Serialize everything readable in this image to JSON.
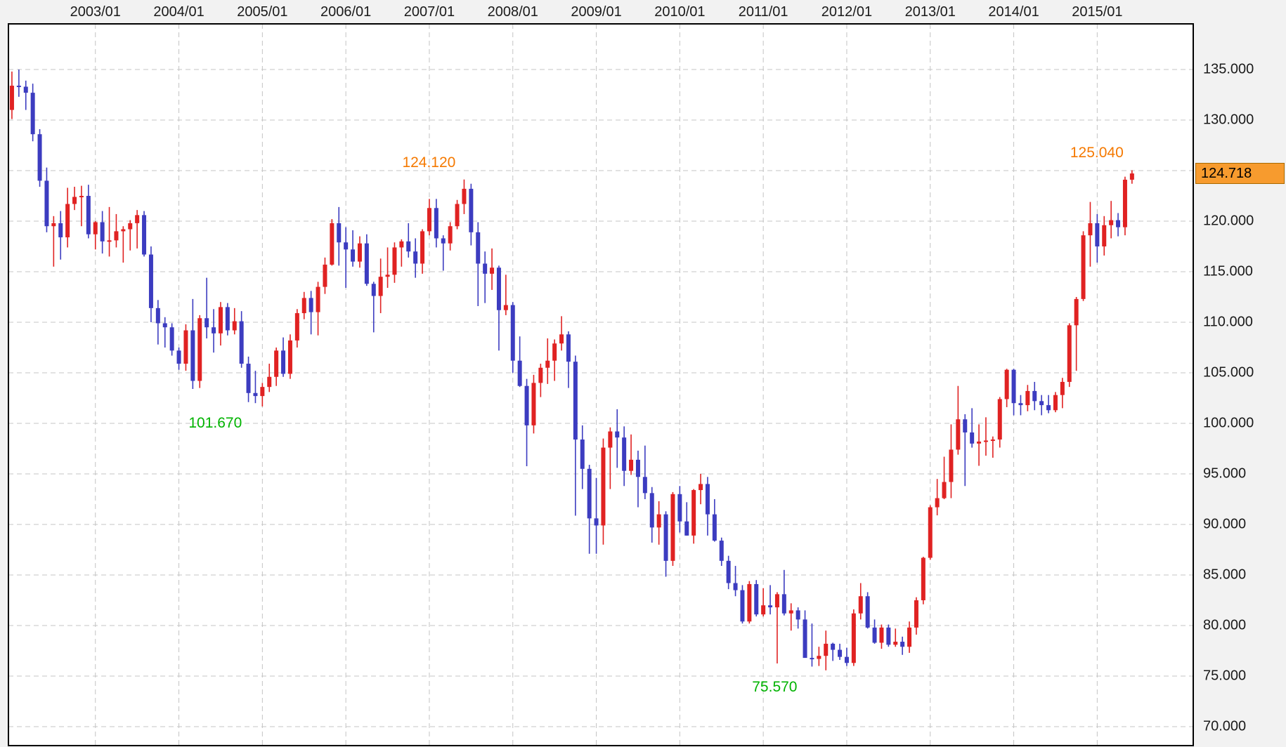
{
  "chart_data": {
    "type": "candlestick",
    "title": "",
    "x_axis": {
      "labels": [
        "2003/01",
        "2004/01",
        "2005/01",
        "2006/01",
        "2007/01",
        "2008/01",
        "2009/01",
        "2010/01",
        "2011/01",
        "2012/01",
        "2013/01",
        "2014/01",
        "2015/01"
      ],
      "start_month": "2002/01",
      "total_months": 162,
      "first_label_index": 12,
      "label_every": 12
    },
    "y_axis": {
      "labels": [
        "135.000",
        "130.000",
        "125.000",
        "120.000",
        "115.000",
        "110.000",
        "105.000",
        "100.000",
        "95.000",
        "90.000",
        "85.000",
        "80.000",
        "75.000",
        "70.000"
      ],
      "max": 135,
      "min": 70,
      "step": 5,
      "grid": true
    },
    "last_price": 124.718,
    "last_price_label": "124.718",
    "annotations": [
      {
        "name": "annotation-high-2007",
        "label": "124.120",
        "month_index": 65,
        "price": 124.12,
        "kind": "high"
      },
      {
        "name": "annotation-high-2015",
        "label": "125.040",
        "month_index": 161,
        "price": 125.04,
        "kind": "high"
      },
      {
        "name": "annotation-low-2005",
        "label": "101.670",
        "month_index": 36,
        "price": 101.67,
        "kind": "low"
      },
      {
        "name": "annotation-low-2011",
        "label": "75.570",
        "month_index": 117,
        "price": 75.57,
        "kind": "low"
      }
    ],
    "colors": {
      "up_candle": "#e02222",
      "down_candle": "#3c3cc0",
      "grid": "#c4c4c4",
      "plot_bg": "#ffffff",
      "outer_bg": "#f2f2f2",
      "border": "#000000",
      "axis_text": "#1a1a1a",
      "annotation_high": "#f57900",
      "annotation_low": "#00b300",
      "price_tag_bg": "#f79b2e",
      "price_tag_border": "#a96a00",
      "price_tag_text": "#000000"
    },
    "ohlc": [
      [
        131.0,
        134.8,
        130.1,
        133.4
      ],
      [
        133.4,
        135.0,
        132.3,
        133.3
      ],
      [
        133.3,
        133.9,
        131.0,
        132.7
      ],
      [
        132.7,
        133.6,
        127.9,
        128.6
      ],
      [
        128.6,
        129.1,
        123.4,
        124.0
      ],
      [
        124.0,
        125.3,
        118.9,
        119.5
      ],
      [
        119.5,
        120.5,
        115.5,
        119.8
      ],
      [
        119.8,
        121.0,
        116.2,
        118.4
      ],
      [
        118.4,
        123.3,
        117.4,
        121.7
      ],
      [
        121.7,
        123.4,
        121.1,
        122.4
      ],
      [
        122.4,
        123.5,
        119.5,
        122.5
      ],
      [
        122.5,
        123.6,
        118.3,
        118.7
      ],
      [
        118.7,
        120.0,
        117.2,
        119.9
      ],
      [
        119.9,
        121.0,
        116.8,
        118.0
      ],
      [
        118.0,
        121.4,
        116.5,
        118.1
      ],
      [
        118.1,
        120.7,
        117.4,
        119.0
      ],
      [
        119.0,
        119.5,
        115.9,
        119.2
      ],
      [
        119.2,
        120.1,
        117.1,
        119.8
      ],
      [
        119.8,
        121.1,
        117.3,
        120.6
      ],
      [
        120.6,
        121.0,
        116.5,
        116.7
      ],
      [
        116.7,
        117.5,
        110.0,
        111.4
      ],
      [
        111.4,
        112.2,
        107.8,
        109.9
      ],
      [
        109.9,
        110.5,
        107.5,
        109.5
      ],
      [
        109.5,
        109.9,
        106.7,
        107.2
      ],
      [
        107.2,
        107.5,
        105.3,
        105.9
      ],
      [
        105.9,
        109.8,
        105.2,
        109.2
      ],
      [
        109.2,
        112.3,
        103.4,
        104.2
      ],
      [
        104.2,
        110.7,
        103.5,
        110.4
      ],
      [
        110.4,
        114.4,
        108.4,
        109.5
      ],
      [
        109.5,
        111.3,
        107.0,
        108.9
      ],
      [
        108.9,
        112.0,
        107.7,
        111.5
      ],
      [
        111.5,
        111.9,
        108.7,
        109.2
      ],
      [
        109.2,
        111.4,
        108.8,
        110.1
      ],
      [
        110.1,
        111.1,
        105.5,
        105.9
      ],
      [
        105.9,
        106.6,
        102.1,
        103.0
      ],
      [
        103.0,
        105.2,
        102.0,
        102.7
      ],
      [
        102.7,
        104.0,
        101.67,
        103.6
      ],
      [
        103.6,
        105.9,
        103.1,
        104.6
      ],
      [
        104.6,
        107.5,
        103.7,
        107.2
      ],
      [
        107.2,
        108.5,
        104.6,
        104.9
      ],
      [
        104.9,
        108.8,
        104.4,
        108.2
      ],
      [
        108.2,
        111.3,
        107.5,
        110.9
      ],
      [
        110.9,
        113.0,
        110.3,
        112.4
      ],
      [
        112.4,
        113.1,
        108.8,
        111.0
      ],
      [
        111.0,
        114.0,
        108.7,
        113.5
      ],
      [
        113.5,
        116.4,
        112.8,
        115.7
      ],
      [
        115.7,
        120.2,
        115.6,
        119.8
      ],
      [
        119.8,
        121.4,
        115.6,
        117.9
      ],
      [
        117.9,
        119.4,
        113.4,
        117.2
      ],
      [
        117.2,
        119.1,
        115.5,
        116.0
      ],
      [
        116.0,
        118.5,
        115.4,
        117.8
      ],
      [
        117.8,
        118.7,
        113.6,
        113.8
      ],
      [
        113.8,
        114.0,
        109.0,
        112.6
      ],
      [
        112.6,
        116.3,
        110.9,
        114.5
      ],
      [
        114.5,
        117.4,
        113.4,
        114.7
      ],
      [
        114.7,
        117.9,
        113.9,
        117.4
      ],
      [
        117.4,
        118.2,
        115.5,
        118.0
      ],
      [
        118.0,
        119.8,
        116.4,
        117.0
      ],
      [
        117.0,
        118.3,
        114.4,
        115.8
      ],
      [
        115.8,
        119.2,
        114.8,
        119.0
      ],
      [
        119.0,
        122.2,
        118.6,
        121.3
      ],
      [
        121.3,
        122.2,
        117.4,
        118.3
      ],
      [
        118.3,
        118.6,
        115.1,
        117.8
      ],
      [
        117.8,
        119.9,
        117.1,
        119.5
      ],
      [
        119.5,
        122.1,
        119.2,
        121.7
      ],
      [
        121.7,
        124.12,
        120.7,
        123.2
      ],
      [
        123.2,
        123.7,
        117.6,
        118.9
      ],
      [
        118.9,
        119.9,
        111.6,
        115.8
      ],
      [
        115.8,
        117.0,
        111.9,
        114.8
      ],
      [
        114.8,
        117.3,
        113.2,
        115.4
      ],
      [
        115.4,
        115.6,
        107.2,
        111.2
      ],
      [
        111.2,
        114.7,
        110.7,
        111.7
      ],
      [
        111.7,
        112.0,
        105.0,
        106.2
      ],
      [
        106.2,
        108.6,
        103.6,
        103.7
      ],
      [
        103.7,
        104.4,
        95.76,
        99.8
      ],
      [
        99.8,
        104.8,
        99.0,
        104.0
      ],
      [
        104.0,
        105.9,
        102.6,
        105.5
      ],
      [
        105.5,
        108.4,
        103.9,
        106.2
      ],
      [
        106.2,
        108.3,
        104.2,
        107.9
      ],
      [
        107.9,
        110.6,
        107.2,
        108.8
      ],
      [
        108.8,
        109.1,
        103.5,
        106.1
      ],
      [
        106.1,
        106.7,
        90.87,
        98.4
      ],
      [
        98.4,
        99.8,
        93.5,
        95.5
      ],
      [
        95.5,
        95.9,
        87.1,
        90.6
      ],
      [
        90.6,
        94.6,
        87.1,
        89.9
      ],
      [
        89.9,
        98.5,
        88.0,
        97.6
      ],
      [
        97.6,
        99.6,
        93.5,
        99.2
      ],
      [
        99.2,
        101.4,
        95.6,
        98.6
      ],
      [
        98.6,
        99.7,
        93.8,
        95.3
      ],
      [
        95.3,
        98.9,
        94.9,
        96.4
      ],
      [
        96.4,
        97.3,
        91.7,
        94.7
      ],
      [
        94.7,
        97.8,
        92.5,
        93.1
      ],
      [
        93.1,
        93.7,
        88.2,
        89.7
      ],
      [
        89.7,
        92.3,
        88.0,
        91.0
      ],
      [
        91.0,
        91.3,
        84.83,
        86.4
      ],
      [
        86.4,
        93.2,
        85.9,
        93.0
      ],
      [
        93.0,
        93.8,
        89.2,
        90.3
      ],
      [
        90.3,
        92.2,
        88.9,
        88.9
      ],
      [
        88.9,
        93.5,
        88.1,
        93.4
      ],
      [
        93.4,
        95.0,
        92.0,
        94.0
      ],
      [
        94.0,
        94.7,
        88.9,
        91.0
      ],
      [
        91.0,
        92.5,
        88.3,
        88.4
      ],
      [
        88.4,
        88.7,
        85.9,
        86.4
      ],
      [
        86.4,
        86.9,
        83.6,
        84.2
      ],
      [
        84.2,
        85.9,
        82.9,
        83.5
      ],
      [
        83.5,
        84.0,
        80.2,
        80.4
      ],
      [
        80.4,
        84.4,
        80.2,
        84.1
      ],
      [
        84.1,
        84.5,
        80.9,
        81.1
      ],
      [
        81.1,
        83.7,
        80.9,
        82.0
      ],
      [
        82.0,
        84.0,
        81.1,
        81.8
      ],
      [
        81.8,
        83.3,
        76.25,
        83.1
      ],
      [
        83.1,
        85.5,
        81.0,
        81.2
      ],
      [
        81.2,
        82.2,
        79.5,
        81.5
      ],
      [
        81.5,
        81.8,
        79.7,
        80.6
      ],
      [
        80.6,
        81.5,
        76.9,
        76.8
      ],
      [
        76.8,
        80.2,
        75.94,
        76.7
      ],
      [
        76.7,
        77.9,
        76.0,
        77.0
      ],
      [
        77.0,
        79.5,
        75.57,
        78.2
      ],
      [
        78.2,
        78.3,
        76.5,
        77.6
      ],
      [
        77.6,
        78.2,
        76.6,
        76.9
      ],
      [
        76.9,
        77.8,
        76.0,
        76.3
      ],
      [
        76.3,
        81.6,
        76.0,
        81.2
      ],
      [
        81.2,
        84.2,
        80.6,
        82.9
      ],
      [
        82.9,
        83.3,
        79.7,
        79.8
      ],
      [
        79.8,
        80.6,
        78.2,
        78.3
      ],
      [
        78.3,
        80.1,
        77.7,
        79.8
      ],
      [
        79.8,
        80.1,
        77.9,
        78.1
      ],
      [
        78.1,
        79.7,
        77.9,
        78.4
      ],
      [
        78.4,
        78.9,
        77.1,
        77.9
      ],
      [
        77.9,
        80.4,
        77.3,
        79.8
      ],
      [
        79.8,
        82.8,
        79.1,
        82.5
      ],
      [
        82.5,
        86.8,
        82.1,
        86.7
      ],
      [
        86.7,
        91.9,
        86.5,
        91.7
      ],
      [
        91.7,
        94.5,
        90.9,
        92.6
      ],
      [
        92.6,
        96.7,
        92.5,
        94.2
      ],
      [
        94.2,
        99.9,
        92.6,
        97.4
      ],
      [
        97.4,
        103.7,
        96.9,
        100.4
      ],
      [
        100.4,
        100.9,
        93.8,
        99.1
      ],
      [
        99.1,
        101.5,
        97.6,
        98.0
      ],
      [
        98.0,
        99.9,
        95.8,
        98.2
      ],
      [
        98.2,
        100.6,
        96.8,
        98.3
      ],
      [
        98.3,
        98.7,
        96.6,
        98.4
      ],
      [
        98.4,
        102.6,
        97.6,
        102.4
      ],
      [
        102.4,
        105.4,
        101.6,
        105.3
      ],
      [
        105.3,
        105.4,
        100.8,
        102.0
      ],
      [
        102.0,
        102.8,
        100.8,
        101.8
      ],
      [
        101.8,
        103.8,
        101.2,
        103.2
      ],
      [
        103.2,
        104.1,
        101.3,
        102.2
      ],
      [
        102.2,
        102.8,
        100.8,
        101.8
      ],
      [
        101.8,
        102.8,
        101.0,
        101.3
      ],
      [
        101.3,
        103.1,
        101.1,
        102.8
      ],
      [
        102.8,
        104.5,
        101.5,
        104.1
      ],
      [
        104.1,
        109.9,
        103.6,
        109.7
      ],
      [
        109.7,
        112.5,
        105.2,
        112.3
      ],
      [
        112.3,
        119.0,
        112.1,
        118.6
      ],
      [
        118.6,
        121.9,
        115.5,
        119.8
      ],
      [
        119.8,
        120.7,
        115.9,
        117.5
      ],
      [
        117.5,
        120.5,
        116.6,
        119.6
      ],
      [
        119.6,
        122.0,
        118.3,
        120.1
      ],
      [
        120.1,
        120.8,
        118.5,
        119.4
      ],
      [
        119.4,
        124.4,
        118.6,
        124.1
      ],
      [
        124.1,
        125.04,
        123.7,
        124.718
      ]
    ]
  }
}
